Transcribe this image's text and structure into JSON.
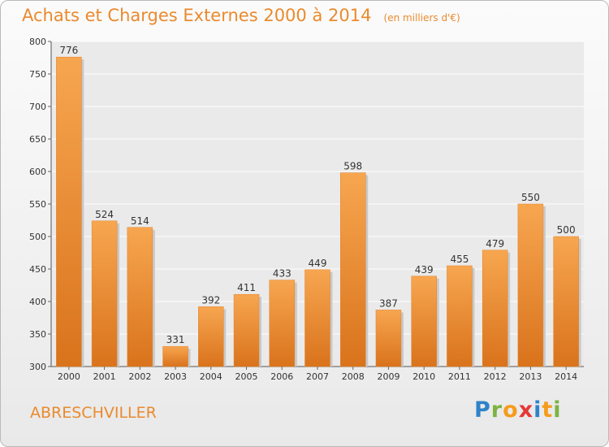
{
  "title": "Achats et Charges Externes 2000 à 2014",
  "unit": "(en milliers d'€)",
  "commune": "ABRESCHVILLER",
  "logo": {
    "letters": [
      "P",
      "r",
      "o",
      "x",
      "i",
      "t",
      "i"
    ],
    "colors": [
      "#2f83c9",
      "#7cb342",
      "#f59c1c",
      "#e53935",
      "#2f83c9",
      "#f59c1c",
      "#7cb342"
    ]
  },
  "chart_data": {
    "type": "bar",
    "categories": [
      "2000",
      "2001",
      "2002",
      "2003",
      "2004",
      "2005",
      "2006",
      "2007",
      "2008",
      "2009",
      "2010",
      "2011",
      "2012",
      "2013",
      "2014"
    ],
    "values": [
      776,
      524,
      514,
      331,
      392,
      411,
      433,
      449,
      598,
      387,
      439,
      455,
      479,
      550,
      500
    ],
    "ylim": [
      300,
      800
    ],
    "yticks": [
      300,
      350,
      400,
      450,
      500,
      550,
      600,
      650,
      700,
      750,
      800
    ],
    "grid": true,
    "bar_color": "#f08a2a"
  }
}
